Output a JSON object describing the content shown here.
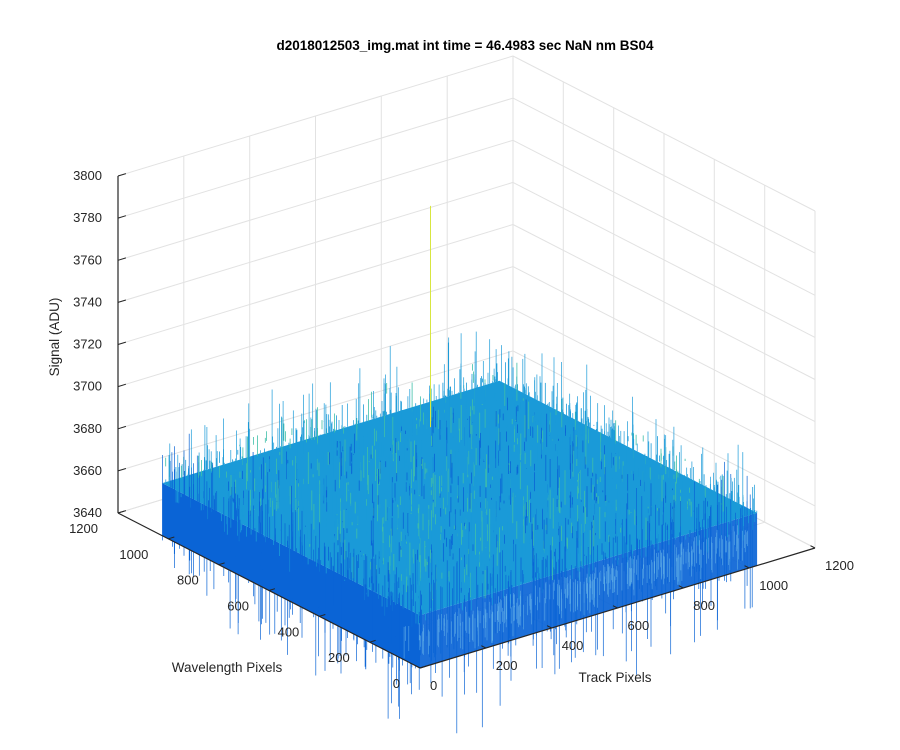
{
  "chart_data": {
    "type": "surface",
    "title": "d2018012503_img.mat int time = 46.4983 sec  NaN nm BS04",
    "xlabel": "Track Pixels",
    "ylabel": "Wavelength Pixels",
    "zlabel": "Signal (ADU)",
    "xlim": [
      0,
      1200
    ],
    "ylim": [
      0,
      1200
    ],
    "zlim": [
      3640,
      3800
    ],
    "x_ticks": [
      "0",
      "200",
      "400",
      "600",
      "800",
      "1000",
      "1200"
    ],
    "y_ticks": [
      "0",
      "200",
      "400",
      "600",
      "800",
      "1000",
      "1200"
    ],
    "z_ticks": [
      "3640",
      "3660",
      "3680",
      "3700",
      "3720",
      "3740",
      "3760",
      "3780",
      "3800"
    ],
    "data_extent": {
      "x": [
        0,
        1024
      ],
      "y": [
        0,
        1024
      ]
    },
    "signal": {
      "mean": 3665,
      "min": 3640,
      "max": 3755,
      "peak": 3770
    },
    "grid": true,
    "colormap": "parula",
    "colors": {
      "low": "#0a64d6",
      "mid": "#1a9ad8",
      "high": "#3fbfa8",
      "spike": "#d8e640"
    }
  }
}
